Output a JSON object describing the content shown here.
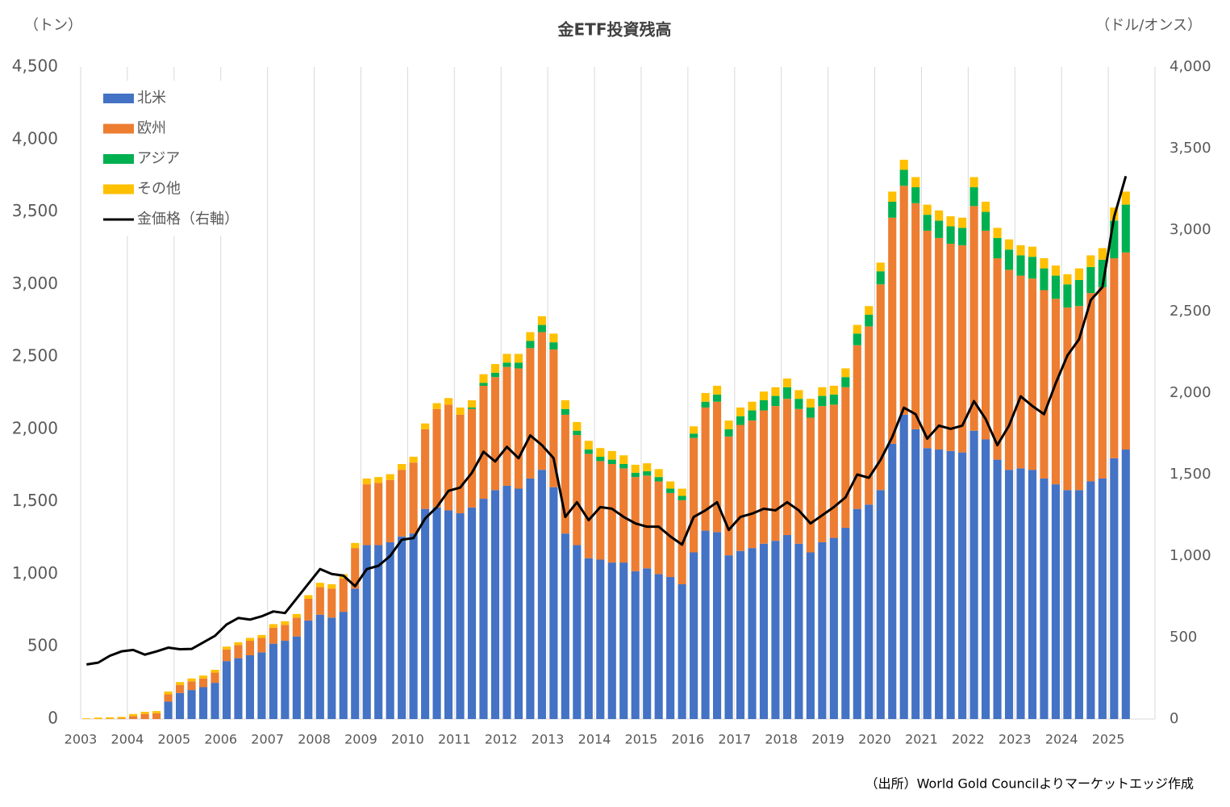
{
  "chart_data": {
    "type": "bar",
    "stacked": true,
    "title": "金ETF投資残高",
    "y_label": "（トン）",
    "y2_label": "（ドル/オンス）",
    "source": "（出所）World Gold Councilよりマーケットエッジ作成",
    "categories": [
      "2003",
      null,
      null,
      null,
      "2004",
      null,
      null,
      null,
      "2005",
      null,
      null,
      null,
      "2006",
      null,
      null,
      null,
      "2007",
      null,
      null,
      null,
      "2008",
      null,
      null,
      null,
      "2009",
      null,
      null,
      null,
      "2010",
      null,
      null,
      null,
      "2011",
      null,
      null,
      null,
      "2012",
      null,
      null,
      null,
      "2013",
      null,
      null,
      null,
      "2014",
      null,
      null,
      null,
      "2015",
      null,
      null,
      null,
      "2016",
      null,
      null,
      null,
      "2017",
      null,
      null,
      null,
      "2018",
      null,
      null,
      null,
      "2019",
      null,
      null,
      null,
      "2020",
      null,
      null,
      null,
      "2021",
      null,
      null,
      null,
      "2022",
      null,
      null,
      null,
      "2023",
      null,
      null,
      null,
      "2024",
      null,
      null,
      null,
      "2025",
      null
    ],
    "ylim": [
      0,
      4500
    ],
    "yticks": [
      0,
      {
        "value": 500,
        "label": "500"
      },
      {
        "value": 1000,
        "label": "1,000"
      },
      {
        "value": 1500,
        "label": "1,500"
      },
      {
        "value": 2000,
        "label": "2,000"
      },
      {
        "value": 2500,
        "label": "2,500"
      },
      {
        "value": 3000,
        "label": "3,000"
      },
      {
        "value": 3500,
        "label": "3,500"
      },
      {
        "value": 4000,
        "label": "4,000"
      },
      {
        "value": 4500,
        "label": "4,500"
      }
    ],
    "y2lim": [
      0,
      4000
    ],
    "y2ticks": [
      0,
      {
        "value": 500,
        "label": "500"
      },
      {
        "value": 1000,
        "label": "1,000"
      },
      {
        "value": 1500,
        "label": "1,500"
      },
      {
        "value": 2000,
        "label": "2,000"
      },
      {
        "value": 2500,
        "label": "2,500"
      },
      {
        "value": 3000,
        "label": "3,000"
      },
      {
        "value": 3500,
        "label": "3,500"
      },
      {
        "value": 4000,
        "label": "4,000"
      }
    ],
    "legend": "upper left",
    "grid": "x",
    "series": [
      {
        "name": "北米",
        "color": "#4472c4",
        "values": [
          0,
          0,
          0,
          0,
          0,
          0,
          0,
          120,
          180,
          200,
          220,
          250,
          400,
          420,
          440,
          460,
          520,
          540,
          570,
          680,
          720,
          700,
          740,
          900,
          1200,
          1200,
          1220,
          1260,
          1280,
          1450,
          1460,
          1440,
          1420,
          1460,
          1520,
          1580,
          1610,
          1590,
          1660,
          1720,
          1600,
          1280,
          1200,
          1110,
          1100,
          1080,
          1080,
          1020,
          1040,
          1000,
          980,
          930,
          1150,
          1300,
          1290,
          1130,
          1160,
          1180,
          1210,
          1230,
          1270,
          1210,
          1150,
          1220,
          1250,
          1320,
          1450,
          1480,
          1580,
          1900,
          2100,
          2000,
          1870,
          1860,
          1850,
          1840,
          1990,
          1930,
          1790,
          1720,
          1730,
          1720,
          1660,
          1620,
          1580,
          1580,
          1640,
          1660,
          1800,
          1860
        ]
      },
      {
        "name": "欧州",
        "color": "#ed7d31",
        "values": [
          0,
          0,
          2,
          5,
          20,
          35,
          40,
          50,
          55,
          60,
          60,
          70,
          80,
          90,
          100,
          100,
          110,
          110,
          130,
          150,
          190,
          200,
          230,
          280,
          420,
          430,
          430,
          460,
          490,
          550,
          680,
          730,
          680,
          680,
          780,
          780,
          820,
          830,
          900,
          950,
          950,
          820,
          760,
          720,
          680,
          680,
          650,
          650,
          640,
          640,
          580,
          580,
          790,
          850,
          900,
          820,
          870,
          880,
          920,
          930,
          940,
          930,
          930,
          940,
          920,
          970,
          1130,
          1230,
          1420,
          1560,
          1580,
          1560,
          1500,
          1460,
          1430,
          1430,
          1550,
          1440,
          1390,
          1380,
          1330,
          1320,
          1300,
          1280,
          1260,
          1270,
          1300,
          1320,
          1380,
          1360
        ]
      },
      {
        "name": "アジア",
        "color": "#00b050",
        "values": [
          0,
          0,
          0,
          0,
          0,
          0,
          0,
          0,
          0,
          0,
          0,
          0,
          0,
          0,
          0,
          0,
          0,
          0,
          0,
          0,
          0,
          0,
          0,
          0,
          0,
          0,
          0,
          0,
          0,
          0,
          0,
          0,
          0,
          10,
          20,
          30,
          30,
          40,
          50,
          50,
          50,
          40,
          30,
          30,
          30,
          30,
          30,
          30,
          30,
          30,
          30,
          30,
          30,
          40,
          50,
          50,
          60,
          70,
          70,
          70,
          80,
          70,
          70,
          70,
          70,
          70,
          80,
          80,
          90,
          110,
          110,
          110,
          110,
          120,
          120,
          120,
          130,
          130,
          140,
          140,
          140,
          150,
          150,
          160,
          160,
          180,
          180,
          190,
          260,
          330
        ]
      },
      {
        "name": "その他",
        "color": "#ffc000",
        "values": [
          5,
          10,
          10,
          10,
          15,
          15,
          15,
          20,
          20,
          20,
          20,
          20,
          20,
          20,
          20,
          20,
          25,
          25,
          25,
          25,
          30,
          30,
          30,
          35,
          40,
          40,
          40,
          40,
          40,
          40,
          40,
          45,
          50,
          50,
          60,
          60,
          60,
          60,
          60,
          60,
          60,
          60,
          60,
          60,
          60,
          60,
          60,
          55,
          55,
          55,
          50,
          50,
          50,
          60,
          60,
          60,
          60,
          60,
          60,
          60,
          60,
          60,
          60,
          60,
          60,
          60,
          60,
          60,
          60,
          70,
          70,
          70,
          70,
          70,
          70,
          70,
          70,
          70,
          70,
          70,
          70,
          70,
          70,
          70,
          70,
          80,
          80,
          80,
          90,
          90
        ]
      },
      {
        "name": "金価格（右軸）",
        "type": "line",
        "axis": "y2",
        "color": "#000000",
        "values": [
          335,
          346,
          388,
          415,
          424,
          395,
          415,
          438,
          428,
          430,
          470,
          510,
          580,
          620,
          610,
          630,
          660,
          650,
          740,
          830,
          920,
          890,
          880,
          815,
          920,
          940,
          1000,
          1100,
          1110,
          1230,
          1300,
          1400,
          1420,
          1510,
          1640,
          1580,
          1670,
          1600,
          1740,
          1680,
          1600,
          1240,
          1330,
          1220,
          1300,
          1290,
          1240,
          1200,
          1180,
          1180,
          1120,
          1070,
          1240,
          1280,
          1330,
          1160,
          1240,
          1260,
          1290,
          1280,
          1330,
          1280,
          1200,
          1250,
          1300,
          1360,
          1500,
          1480,
          1590,
          1730,
          1910,
          1870,
          1720,
          1800,
          1780,
          1800,
          1950,
          1840,
          1680,
          1800,
          1980,
          1920,
          1870,
          2060,
          2230,
          2330,
          2570,
          2650,
          3080,
          3330
        ]
      }
    ]
  }
}
